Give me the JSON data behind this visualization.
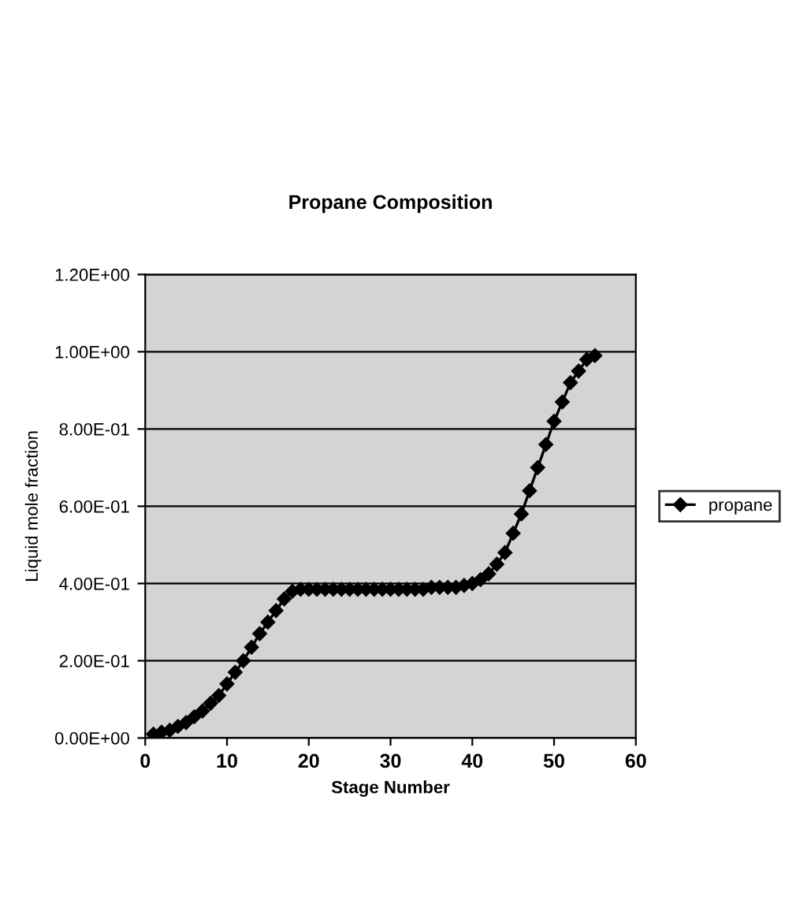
{
  "chart_data": {
    "type": "line",
    "title": "Propane Composition",
    "xlabel": "Stage Number",
    "ylabel": "Liquid mole fraction",
    "series": [
      {
        "name": "propane",
        "color": "#000000",
        "x": [
          1,
          2,
          3,
          4,
          5,
          6,
          7,
          8,
          9,
          10,
          11,
          12,
          13,
          14,
          15,
          16,
          17,
          18,
          19,
          20,
          21,
          22,
          23,
          24,
          25,
          26,
          27,
          28,
          29,
          30,
          31,
          32,
          33,
          34,
          35,
          36,
          37,
          38,
          39,
          40,
          41,
          42,
          43,
          44,
          45,
          46,
          47,
          48,
          49,
          50,
          51,
          52,
          53,
          54,
          55
        ],
        "values": [
          0.01,
          0.015,
          0.02,
          0.03,
          0.04,
          0.055,
          0.07,
          0.09,
          0.11,
          0.14,
          0.17,
          0.2,
          0.235,
          0.27,
          0.3,
          0.33,
          0.36,
          0.38,
          0.385,
          0.385,
          0.385,
          0.385,
          0.385,
          0.385,
          0.385,
          0.385,
          0.385,
          0.385,
          0.385,
          0.385,
          0.385,
          0.385,
          0.385,
          0.385,
          0.39,
          0.39,
          0.39,
          0.39,
          0.395,
          0.4,
          0.41,
          0.425,
          0.45,
          0.48,
          0.53,
          0.58,
          0.64,
          0.7,
          0.76,
          0.82,
          0.87,
          0.92,
          0.95,
          0.98,
          0.99
        ]
      }
    ],
    "xlim": [
      0,
      60
    ],
    "xticks": [
      0,
      10,
      20,
      30,
      40,
      50,
      60
    ],
    "ylim": [
      0,
      1.2
    ],
    "yticks": [
      {
        "value": 0,
        "label": "0.00E+00"
      },
      {
        "value": 0.2,
        "label": "2.00E-01"
      },
      {
        "value": 0.4,
        "label": "4.00E-01"
      },
      {
        "value": 0.6,
        "label": "6.00E-01"
      },
      {
        "value": 0.8,
        "label": "8.00E-01"
      },
      {
        "value": 1.0,
        "label": "1.00E+00"
      },
      {
        "value": 1.2,
        "label": "1.20E+00"
      }
    ],
    "grid": "y",
    "legend": "right",
    "marker": "diamond",
    "line_style": "solid"
  }
}
